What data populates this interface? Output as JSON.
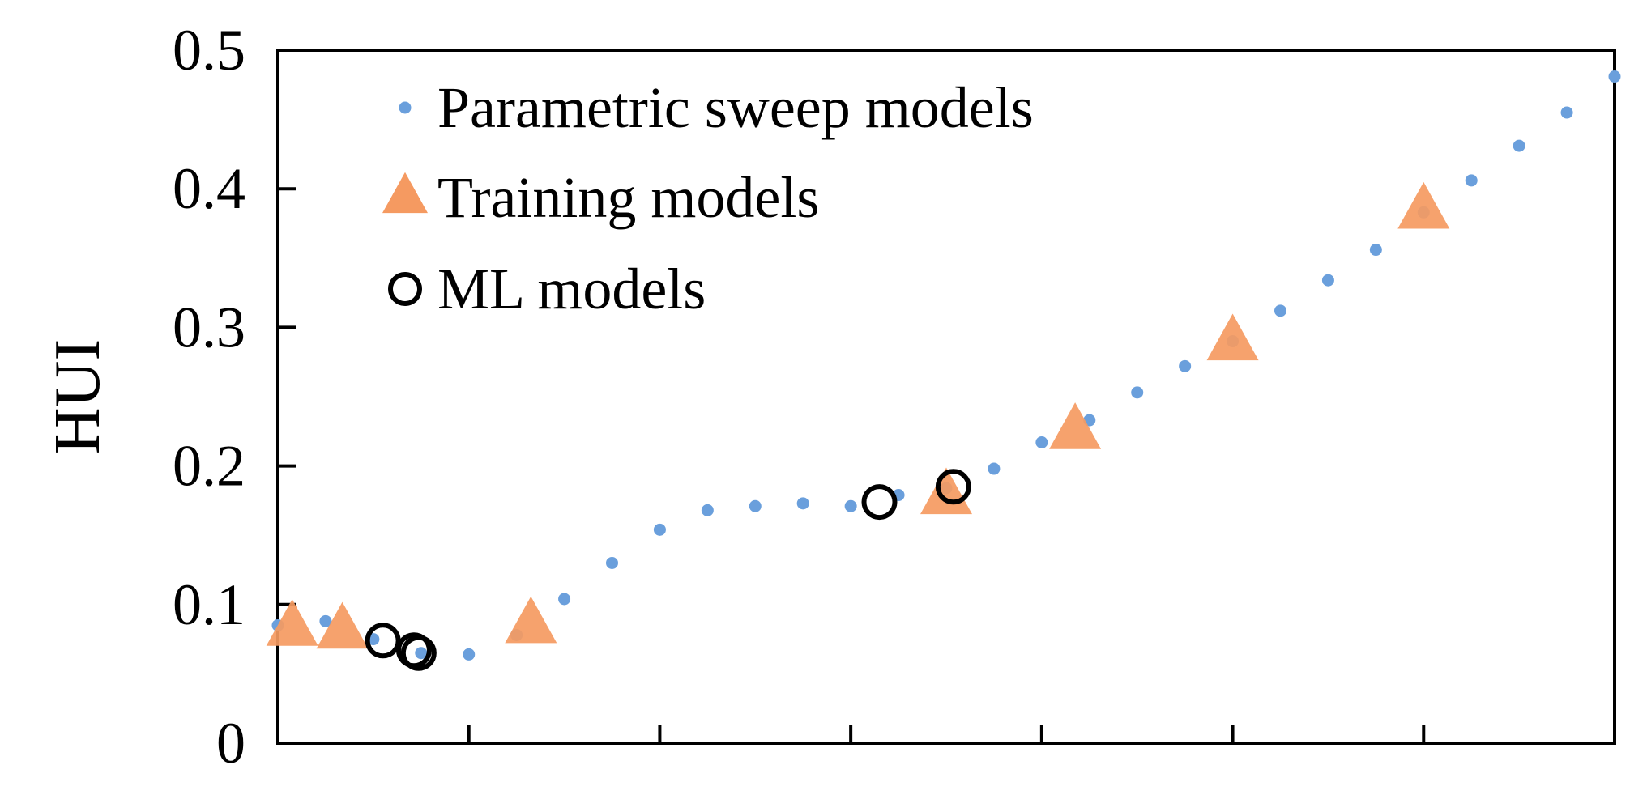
{
  "chart_data": {
    "type": "scatter",
    "title": "",
    "xlabel": "",
    "ylabel": "HUI",
    "xlim": [
      0,
      28
    ],
    "ylim": [
      0,
      0.5
    ],
    "x_gridlines": false,
    "y_gridlines": false,
    "yticks": [
      {
        "value": 0,
        "label": "0"
      },
      {
        "value": 0.1,
        "label": "0.1"
      },
      {
        "value": 0.2,
        "label": "0.2"
      },
      {
        "value": 0.3,
        "label": "0.3"
      },
      {
        "value": 0.4,
        "label": "0.4"
      },
      {
        "value": 0.5,
        "label": "0.5"
      }
    ],
    "xticks": [
      4,
      8,
      12,
      16,
      20,
      24
    ],
    "legend_position": "top-left",
    "colors": {
      "sweep": "#6a9fdc",
      "training": "#f59a61",
      "ml_edge": "#000000"
    },
    "series": [
      {
        "key": "sweep",
        "name": "Parametric sweep models",
        "marker": "dot",
        "points": [
          [
            0,
            0.085
          ],
          [
            1,
            0.088
          ],
          [
            2,
            0.075
          ],
          [
            3,
            0.065
          ],
          [
            4,
            0.064
          ],
          [
            5,
            0.078
          ],
          [
            6,
            0.104
          ],
          [
            7,
            0.13
          ],
          [
            8,
            0.154
          ],
          [
            9,
            0.168
          ],
          [
            10,
            0.171
          ],
          [
            11,
            0.173
          ],
          [
            12,
            0.171
          ],
          [
            13,
            0.179
          ],
          [
            14,
            0.184
          ],
          [
            15,
            0.198
          ],
          [
            16,
            0.217
          ],
          [
            17,
            0.233
          ],
          [
            18,
            0.253
          ],
          [
            19,
            0.272
          ],
          [
            20,
            0.29
          ],
          [
            21,
            0.312
          ],
          [
            22,
            0.334
          ],
          [
            23,
            0.356
          ],
          [
            24,
            0.383
          ],
          [
            25,
            0.406
          ],
          [
            26,
            0.431
          ],
          [
            27,
            0.455
          ],
          [
            28,
            0.481
          ]
        ]
      },
      {
        "key": "training",
        "name": "Training models",
        "marker": "triangle",
        "points": [
          [
            0.3,
            0.083
          ],
          [
            1.35,
            0.081
          ],
          [
            5.3,
            0.085
          ],
          [
            14.0,
            0.178
          ],
          [
            16.7,
            0.225
          ],
          [
            20.0,
            0.289
          ],
          [
            24.0,
            0.384
          ]
        ]
      },
      {
        "key": "ml",
        "name": "ML models",
        "marker": "open-circle",
        "points": [
          [
            2.2,
            0.074
          ],
          [
            2.85,
            0.067
          ],
          [
            2.95,
            0.065
          ],
          [
            12.6,
            0.174
          ],
          [
            14.15,
            0.185
          ]
        ]
      }
    ]
  }
}
